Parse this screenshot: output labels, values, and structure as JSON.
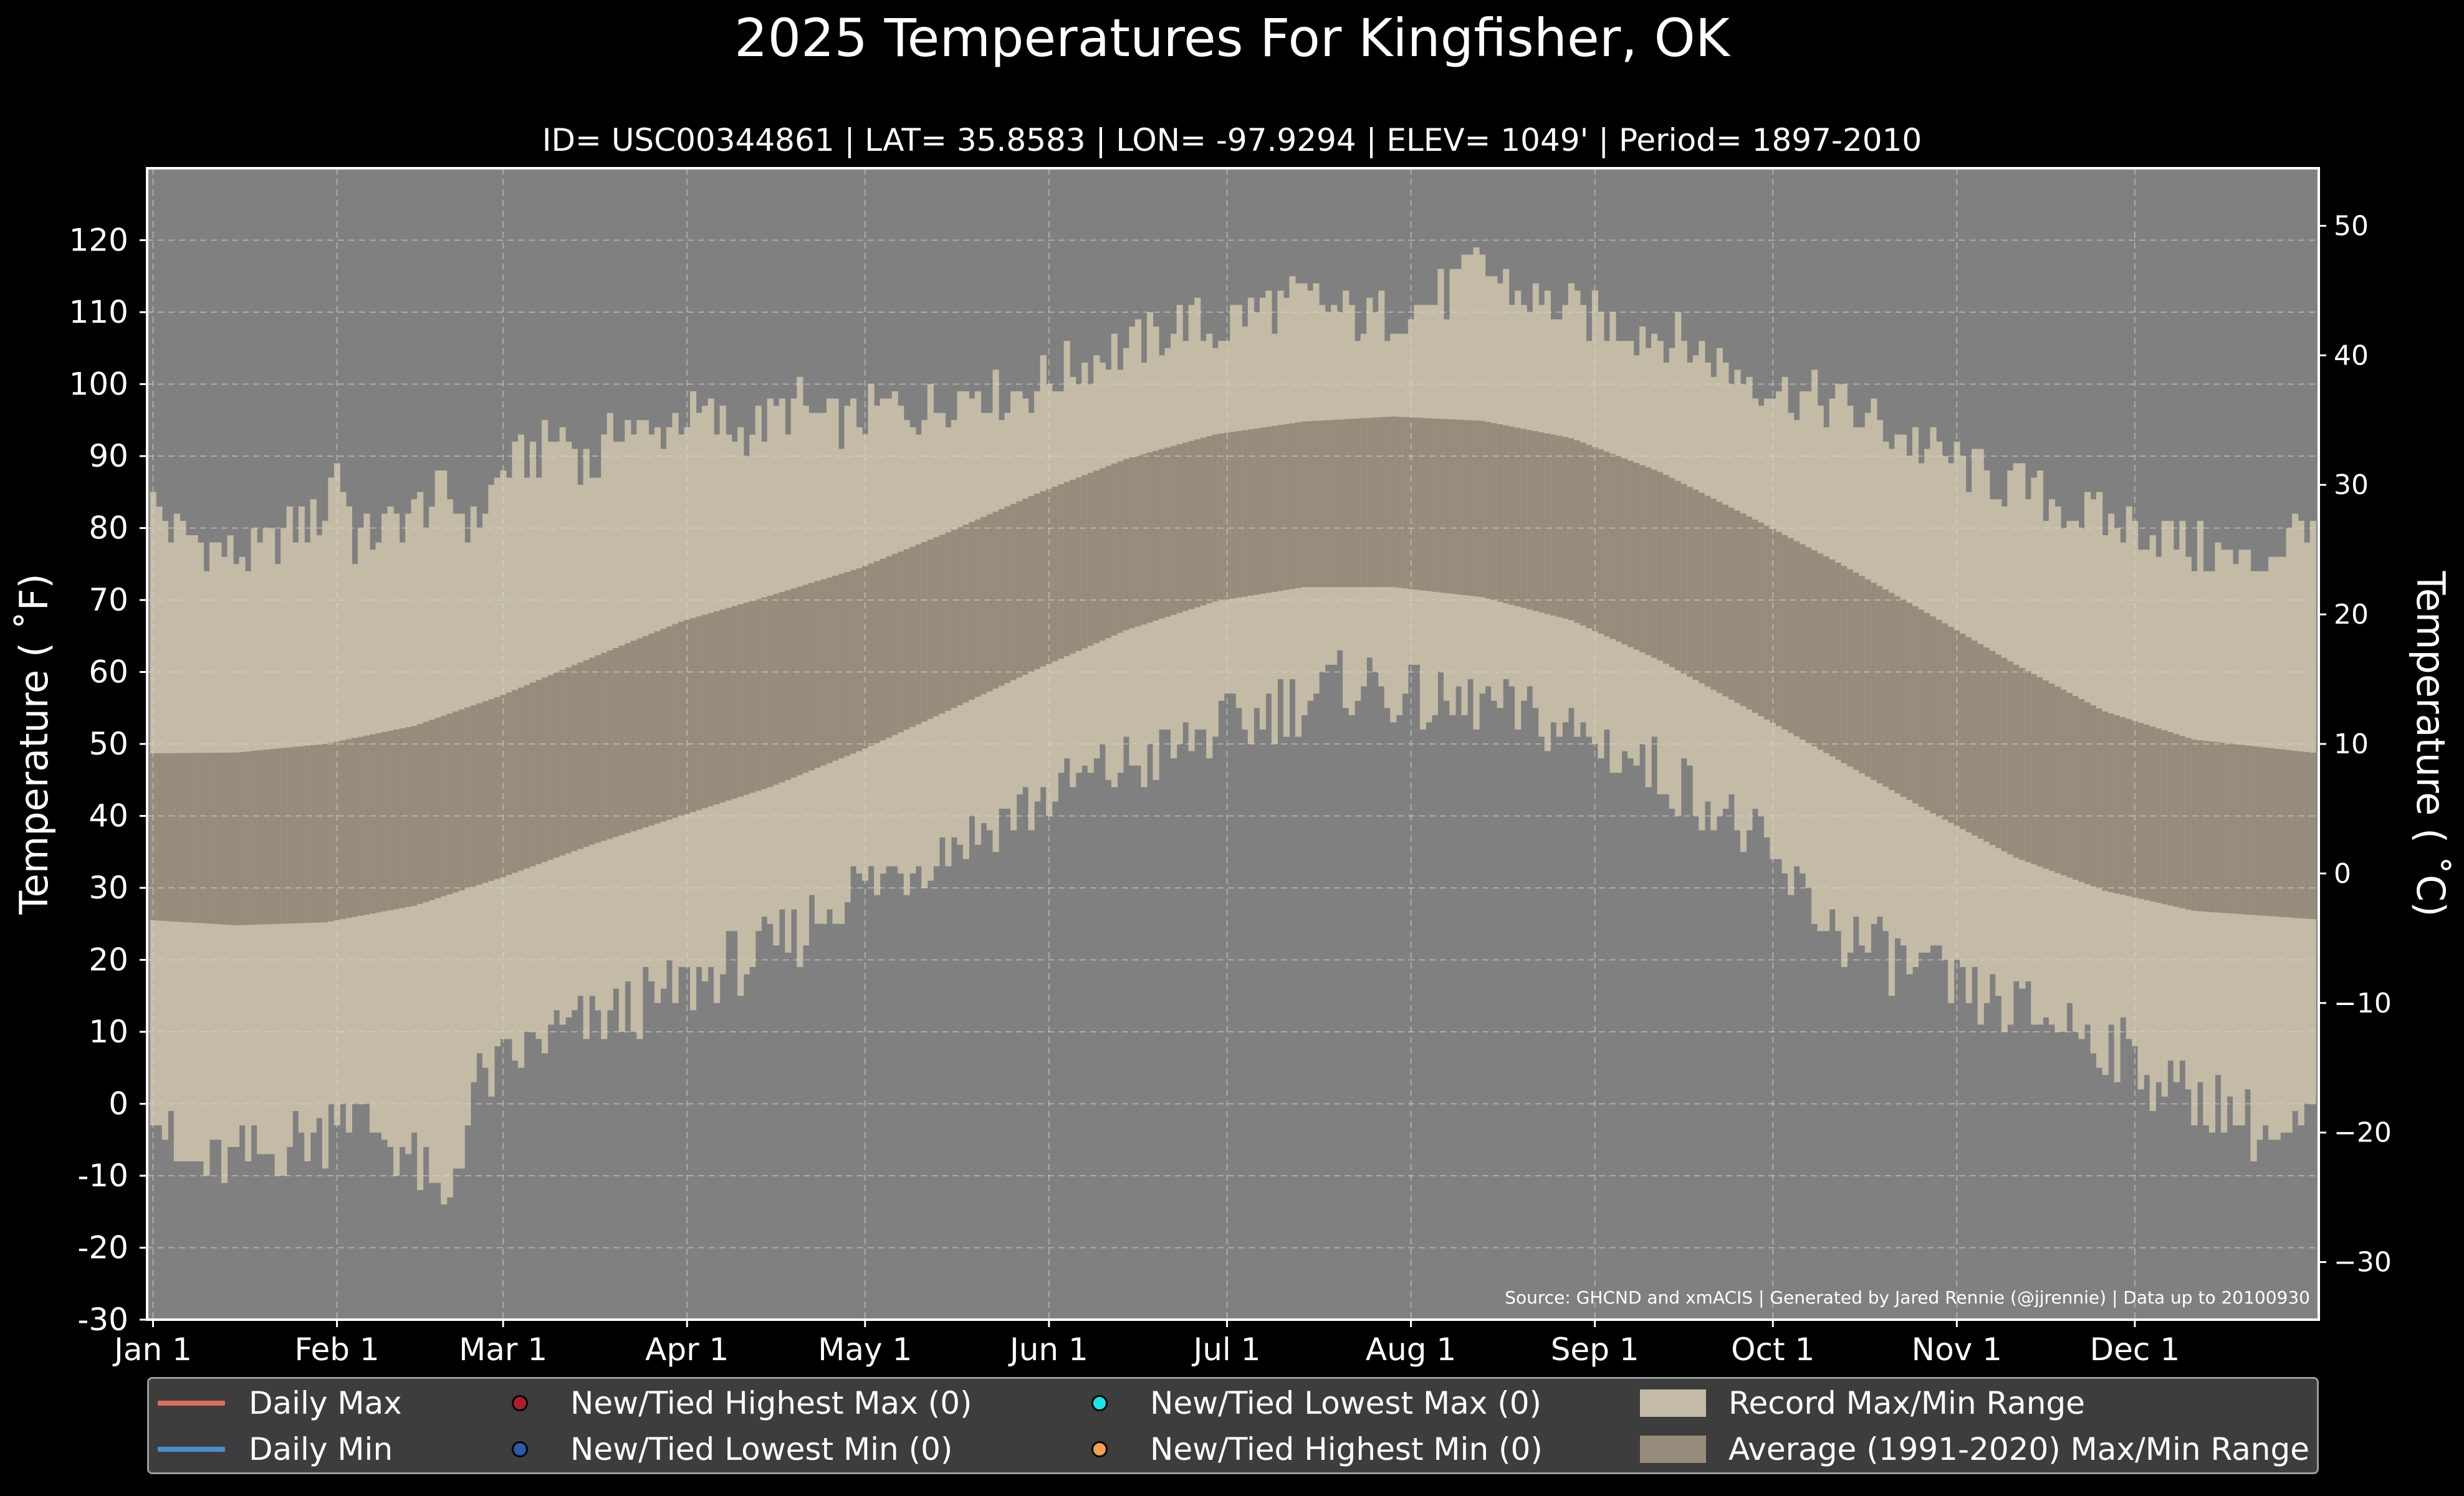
{
  "chart_data": {
    "type": "bar",
    "title": "2025 Temperatures For Kingfisher, OK",
    "subtitle": "ID= USC00344861 | LAT= 35.8583 | LON= -97.9294 | ELEV= 1049' | Period= 1897-2010",
    "ylabel_left": "Temperature ( $^\\circ$F)",
    "ylabel_left_display": "Temperature ( ˚F)",
    "ylabel_right_display": "Temperature ( ˚C)",
    "ylim_f": [
      -30,
      130
    ],
    "yticks_f": [
      "-30",
      "-20",
      "-10",
      "0",
      "10",
      "20",
      "30",
      "40",
      "50",
      "60",
      "70",
      "80",
      "90",
      "100",
      "110",
      "120"
    ],
    "yticks_c": [
      "−30",
      "−20",
      "−10",
      "0",
      "10",
      "20",
      "30",
      "40",
      "50"
    ],
    "xlim_days": [
      0,
      366
    ],
    "x_ticks": [
      {
        "label": "Jan 1",
        "day": 1
      },
      {
        "label": "Feb 1",
        "day": 32
      },
      {
        "label": "Mar 1",
        "day": 60
      },
      {
        "label": "Apr 1",
        "day": 91
      },
      {
        "label": "May 1",
        "day": 121
      },
      {
        "label": "Jun 1",
        "day": 152
      },
      {
        "label": "Jul 1",
        "day": 182
      },
      {
        "label": "Aug 1",
        "day": 213
      },
      {
        "label": "Sep 1",
        "day": 244
      },
      {
        "label": "Oct 1",
        "day": 274
      },
      {
        "label": "Nov 1",
        "day": 305
      },
      {
        "label": "Dec 1",
        "day": 335
      }
    ],
    "grid": true,
    "source_note": "Source: GHCND and xmACIS | Generated by Jared Rennie (@jjrennie) | Data up to 20100930",
    "series": [
      {
        "name": "Record Max/Min Range",
        "color": "#c3bba5",
        "record_max_knots": [
          [
            1,
            83
          ],
          [
            5,
            79
          ],
          [
            10,
            78
          ],
          [
            15,
            76
          ],
          [
            20,
            77
          ],
          [
            25,
            80
          ],
          [
            30,
            82
          ],
          [
            32,
            90
          ],
          [
            35,
            78
          ],
          [
            40,
            80
          ],
          [
            45,
            82
          ],
          [
            50,
            85
          ],
          [
            55,
            80
          ],
          [
            60,
            88
          ],
          [
            65,
            90
          ],
          [
            70,
            93
          ],
          [
            75,
            88
          ],
          [
            80,
            95
          ],
          [
            85,
            92
          ],
          [
            90,
            96
          ],
          [
            95,
            95
          ],
          [
            100,
            93
          ],
          [
            105,
            95
          ],
          [
            110,
            97
          ],
          [
            115,
            94
          ],
          [
            120,
            95
          ],
          [
            125,
            97
          ],
          [
            130,
            96
          ],
          [
            135,
            98
          ],
          [
            140,
            100
          ],
          [
            145,
            98
          ],
          [
            150,
            100
          ],
          [
            155,
            102
          ],
          [
            160,
            104
          ],
          [
            165,
            105
          ],
          [
            170,
            106
          ],
          [
            175,
            109
          ],
          [
            180,
            107
          ],
          [
            185,
            110
          ],
          [
            190,
            111
          ],
          [
            195,
            112
          ],
          [
            200,
            110
          ],
          [
            205,
            109
          ],
          [
            210,
            110
          ],
          [
            215,
            111
          ],
          [
            220,
            113
          ],
          [
            225,
            117
          ],
          [
            230,
            113
          ],
          [
            235,
            111
          ],
          [
            240,
            110
          ],
          [
            245,
            109
          ],
          [
            250,
            108
          ],
          [
            255,
            107
          ],
          [
            260,
            105
          ],
          [
            265,
            103
          ],
          [
            270,
            101
          ],
          [
            275,
            99
          ],
          [
            280,
            98
          ],
          [
            285,
            97
          ],
          [
            290,
            95
          ],
          [
            295,
            93
          ],
          [
            300,
            91
          ],
          [
            305,
            89
          ],
          [
            310,
            87
          ],
          [
            315,
            86
          ],
          [
            320,
            84
          ],
          [
            325,
            82
          ],
          [
            330,
            81
          ],
          [
            335,
            80
          ],
          [
            340,
            79
          ],
          [
            345,
            77
          ],
          [
            350,
            76
          ],
          [
            355,
            75
          ],
          [
            360,
            78
          ],
          [
            365,
            82
          ]
        ],
        "record_min_knots": [
          [
            1,
            1
          ],
          [
            5,
            -8
          ],
          [
            10,
            -9
          ],
          [
            15,
            -8
          ],
          [
            20,
            -7
          ],
          [
            25,
            -5
          ],
          [
            30,
            -4
          ],
          [
            32,
            2
          ],
          [
            35,
            -2
          ],
          [
            40,
            -4
          ],
          [
            45,
            -8
          ],
          [
            50,
            -15
          ],
          [
            55,
            2
          ],
          [
            60,
            5
          ],
          [
            65,
            8
          ],
          [
            70,
            10
          ],
          [
            75,
            11
          ],
          [
            80,
            13
          ],
          [
            85,
            14
          ],
          [
            90,
            16
          ],
          [
            95,
            18
          ],
          [
            100,
            20
          ],
          [
            105,
            21
          ],
          [
            110,
            24
          ],
          [
            115,
            28
          ],
          [
            120,
            30
          ],
          [
            125,
            32
          ],
          [
            130,
            34
          ],
          [
            135,
            36
          ],
          [
            140,
            38
          ],
          [
            145,
            40
          ],
          [
            150,
            42
          ],
          [
            155,
            44
          ],
          [
            160,
            46
          ],
          [
            165,
            47
          ],
          [
            170,
            48
          ],
          [
            175,
            50
          ],
          [
            180,
            52
          ],
          [
            185,
            53
          ],
          [
            190,
            55
          ],
          [
            195,
            56
          ],
          [
            200,
            58
          ],
          [
            205,
            59
          ],
          [
            210,
            57
          ],
          [
            215,
            56
          ],
          [
            220,
            55
          ],
          [
            225,
            56
          ],
          [
            230,
            54
          ],
          [
            235,
            53
          ],
          [
            240,
            52
          ],
          [
            245,
            50
          ],
          [
            250,
            48
          ],
          [
            255,
            46
          ],
          [
            260,
            44
          ],
          [
            265,
            41
          ],
          [
            270,
            37
          ],
          [
            275,
            32
          ],
          [
            280,
            28
          ],
          [
            285,
            24
          ],
          [
            290,
            22
          ],
          [
            295,
            20
          ],
          [
            300,
            18
          ],
          [
            305,
            16
          ],
          [
            310,
            14
          ],
          [
            315,
            13
          ],
          [
            320,
            12
          ],
          [
            325,
            11
          ],
          [
            330,
            9
          ],
          [
            335,
            6
          ],
          [
            340,
            3
          ],
          [
            345,
            1
          ],
          [
            350,
            0
          ],
          [
            355,
            -3
          ],
          [
            360,
            -6
          ],
          [
            365,
            -2
          ]
        ]
      },
      {
        "name": "Average (1991-2020) Max/Min Range",
        "color": "#978c7b",
        "normal_max_knots": [
          [
            1,
            48.7
          ],
          [
            15,
            48.8
          ],
          [
            30,
            50
          ],
          [
            45,
            52.5
          ],
          [
            60,
            56.8
          ],
          [
            75,
            62
          ],
          [
            90,
            67
          ],
          [
            105,
            70.6
          ],
          [
            120,
            74.4
          ],
          [
            135,
            79.4
          ],
          [
            150,
            84.8
          ],
          [
            165,
            89.6
          ],
          [
            180,
            93
          ],
          [
            195,
            94.8
          ],
          [
            210,
            95.5
          ],
          [
            225,
            94.9
          ],
          [
            240,
            92.5
          ],
          [
            255,
            87.8
          ],
          [
            270,
            81.6
          ],
          [
            285,
            75.2
          ],
          [
            300,
            68.2
          ],
          [
            315,
            61
          ],
          [
            330,
            54.5
          ],
          [
            345,
            50.6
          ],
          [
            366,
            48.7
          ]
        ],
        "normal_min_knots": [
          [
            1,
            25.5
          ],
          [
            15,
            24.8
          ],
          [
            30,
            25.2
          ],
          [
            45,
            27.5
          ],
          [
            60,
            31.5
          ],
          [
            75,
            36
          ],
          [
            90,
            40
          ],
          [
            105,
            44
          ],
          [
            120,
            49
          ],
          [
            135,
            54.6
          ],
          [
            150,
            60.4
          ],
          [
            165,
            65.8
          ],
          [
            180,
            69.8
          ],
          [
            195,
            71.8
          ],
          [
            210,
            71.8
          ],
          [
            225,
            70.4
          ],
          [
            240,
            67.2
          ],
          [
            255,
            61.6
          ],
          [
            270,
            54.8
          ],
          [
            285,
            47.8
          ],
          [
            300,
            40.8
          ],
          [
            315,
            34.2
          ],
          [
            330,
            29.6
          ],
          [
            345,
            26.8
          ],
          [
            366,
            25.6
          ]
        ]
      }
    ]
  },
  "legend": {
    "items": [
      {
        "label": "Daily Max",
        "color": "#e06f57"
      },
      {
        "label": "Daily Min",
        "color": "#4a90c8"
      },
      {
        "label": "New/Tied Highest Max (0)",
        "color": "#b01a2a"
      },
      {
        "label": "New/Tied Lowest Min (0)",
        "color": "#2a5aa8"
      },
      {
        "label": "New/Tied Lowest Max (0)",
        "color": "#19e6e6"
      },
      {
        "label": "New/Tied Highest Min (0)",
        "color": "#f0a050"
      },
      {
        "label": "Record Max/Min Range",
        "color": "#c3bba5"
      },
      {
        "label": "Average (1991-2020) Max/Min Range",
        "color": "#978c7b"
      }
    ]
  }
}
